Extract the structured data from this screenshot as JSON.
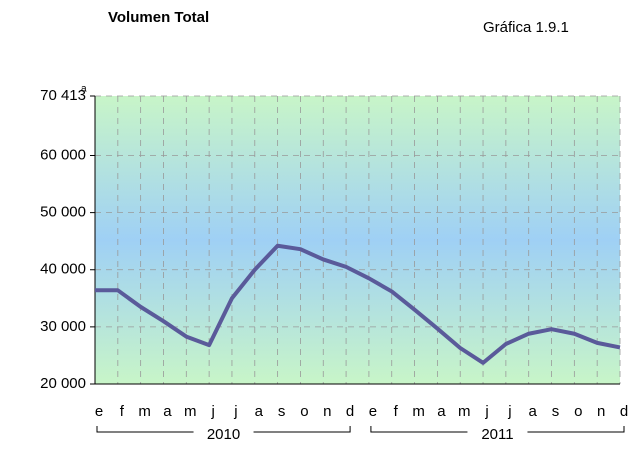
{
  "chart_data": {
    "type": "line",
    "title": "Volumen Total",
    "subtitle": "Gráfica 1.9.1",
    "categories": [
      "e",
      "f",
      "m",
      "a",
      "m",
      "j",
      "j",
      "a",
      "s",
      "o",
      "n",
      "d",
      "e",
      "f",
      "m",
      "a",
      "m",
      "j",
      "j",
      "a",
      "s",
      "o",
      "n",
      "d"
    ],
    "groups": [
      "2010",
      "2011"
    ],
    "values": [
      36400,
      36400,
      33500,
      31000,
      28300,
      26800,
      35000,
      40000,
      44200,
      43600,
      41800,
      40500,
      38500,
      36200,
      33000,
      29700,
      26300,
      23700,
      27000,
      28800,
      29600,
      28800,
      27200,
      26400
    ],
    "color": "#5a5a9a",
    "ylim": [
      20000,
      70413
    ],
    "yticks": [
      {
        "value": 20000,
        "label": "20 000"
      },
      {
        "value": 30000,
        "label": "30 000"
      },
      {
        "value": 40000,
        "label": "40 000"
      },
      {
        "value": 50000,
        "label": "50 000"
      },
      {
        "value": 60000,
        "label": "60 000"
      },
      {
        "value": 70413,
        "label": "70 413"
      }
    ],
    "annotation": "a",
    "grid": true
  }
}
